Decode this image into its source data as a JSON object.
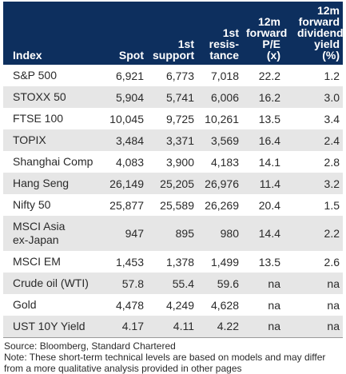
{
  "table": {
    "headers": {
      "index": "Index",
      "spot": "Spot",
      "support": "1st\nsupport",
      "resistance": "1st\nresis-\ntance",
      "pe": "12m\nforward\nP/E (x)",
      "dividend": "12m\nforward\ndividend\nyield (%)"
    },
    "rows": [
      {
        "index": "S&P 500",
        "spot": "6,921",
        "support": "6,773",
        "resistance": "7,018",
        "pe": "22.2",
        "dividend": "1.2"
      },
      {
        "index": "STOXX 50",
        "spot": "5,904",
        "support": "5,741",
        "resistance": "6,006",
        "pe": "16.2",
        "dividend": "3.0"
      },
      {
        "index": "FTSE 100",
        "spot": "10,045",
        "support": "9,725",
        "resistance": "10,261",
        "pe": "13.5",
        "dividend": "3.4"
      },
      {
        "index": "TOPIX",
        "spot": "3,484",
        "support": "3,371",
        "resistance": "3,569",
        "pe": "16.4",
        "dividend": "2.4"
      },
      {
        "index": "Shanghai Comp",
        "spot": "4,083",
        "support": "3,900",
        "resistance": "4,183",
        "pe": "14.1",
        "dividend": "2.8"
      },
      {
        "index": "Hang Seng",
        "spot": "26,149",
        "support": "25,205",
        "resistance": "26,976",
        "pe": "11.4",
        "dividend": "3.2"
      },
      {
        "index": "Nifty 50",
        "spot": "25,877",
        "support": "25,589",
        "resistance": "26,269",
        "pe": "20.4",
        "dividend": "1.5"
      },
      {
        "index": "MSCI Asia\nex-Japan",
        "spot": "947",
        "support": "895",
        "resistance": "980",
        "pe": "14.4",
        "dividend": "2.2"
      },
      {
        "index": "MSCI EM",
        "spot": "1,453",
        "support": "1,378",
        "resistance": "1,499",
        "pe": "13.5",
        "dividend": "2.6"
      },
      {
        "index": "Crude oil (WTI)",
        "spot": "57.8",
        "support": "55.4",
        "resistance": "59.6",
        "pe": "na",
        "dividend": "na"
      },
      {
        "index": "Gold",
        "spot": "4,478",
        "support": "4,249",
        "resistance": "4,628",
        "pe": "na",
        "dividend": "na"
      },
      {
        "index": "UST 10Y Yield",
        "spot": "4.17",
        "support": "4.11",
        "resistance": "4.22",
        "pe": "na",
        "dividend": "na"
      }
    ]
  },
  "footer": {
    "source": "Source: Bloomberg, Standard Chartered",
    "note": "Note: These short-term technical levels are based on models and may differ from a more qualitative analysis provided in other pages"
  },
  "colors": {
    "header_bg": "#0d2f5e",
    "header_text": "#ffffff",
    "row_alt_bg": "#e6e6e6",
    "text": "#2a2a2a"
  }
}
